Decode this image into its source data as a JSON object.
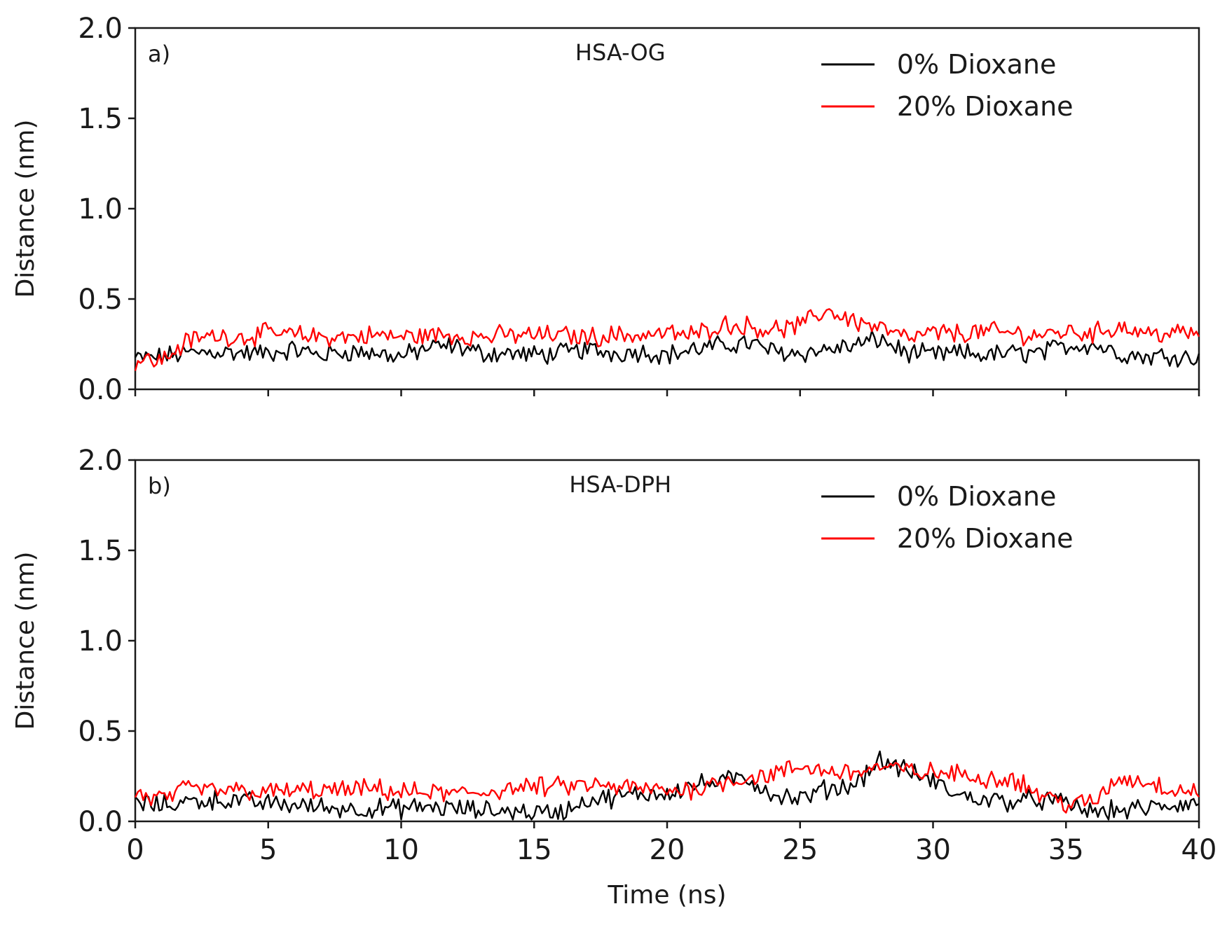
{
  "chart_data": [
    {
      "type": "line",
      "panel_label": "a)",
      "title": "HSA-OG",
      "xlabel": "",
      "ylabel": "Distance (nm)",
      "xlim": [
        0,
        40
      ],
      "ylim": [
        0.0,
        2.0
      ],
      "xticks": [
        0,
        5,
        10,
        15,
        20,
        25,
        30,
        35,
        40
      ],
      "xtick_labels": [
        "",
        "",
        "",
        "",
        "",
        "",
        "",
        "",
        ""
      ],
      "yticks": [
        0.0,
        0.5,
        1.0,
        1.5,
        2.0
      ],
      "ytick_labels": [
        "0.0",
        "0.5",
        "1.0",
        "1.5",
        "2.0"
      ],
      "legend_position": "top-right",
      "series": [
        {
          "name": "0% Dioxane",
          "color": "#000000",
          "x": [
            0,
            1,
            2,
            3,
            4,
            5,
            6,
            7,
            8,
            9,
            10,
            11,
            12,
            13,
            14,
            15,
            16,
            17,
            18,
            19,
            20,
            21,
            22,
            23,
            24,
            25,
            26,
            27,
            28,
            29,
            30,
            31,
            32,
            33,
            34,
            35,
            36,
            37,
            38,
            39,
            40
          ],
          "y": [
            0.17,
            0.18,
            0.2,
            0.21,
            0.2,
            0.2,
            0.22,
            0.19,
            0.21,
            0.2,
            0.18,
            0.23,
            0.24,
            0.2,
            0.2,
            0.19,
            0.2,
            0.22,
            0.2,
            0.21,
            0.19,
            0.22,
            0.24,
            0.26,
            0.21,
            0.2,
            0.22,
            0.24,
            0.28,
            0.2,
            0.19,
            0.2,
            0.19,
            0.2,
            0.2,
            0.24,
            0.25,
            0.2,
            0.18,
            0.19,
            0.17
          ]
        },
        {
          "name": "20% Dioxane",
          "color": "#ff0000",
          "x": [
            0,
            1,
            2,
            3,
            4,
            5,
            6,
            7,
            8,
            9,
            10,
            11,
            12,
            13,
            14,
            15,
            16,
            17,
            18,
            19,
            20,
            21,
            22,
            23,
            24,
            25,
            26,
            27,
            28,
            29,
            30,
            31,
            32,
            33,
            34,
            35,
            36,
            37,
            38,
            39,
            40
          ],
          "y": [
            0.16,
            0.16,
            0.27,
            0.3,
            0.29,
            0.31,
            0.3,
            0.29,
            0.29,
            0.3,
            0.29,
            0.3,
            0.3,
            0.29,
            0.3,
            0.3,
            0.3,
            0.29,
            0.3,
            0.3,
            0.31,
            0.3,
            0.36,
            0.35,
            0.33,
            0.35,
            0.44,
            0.38,
            0.34,
            0.28,
            0.31,
            0.31,
            0.32,
            0.31,
            0.3,
            0.32,
            0.31,
            0.35,
            0.31,
            0.31,
            0.31
          ]
        }
      ]
    },
    {
      "type": "line",
      "panel_label": "b)",
      "title": "HSA-DPH",
      "xlabel": "Time (ns)",
      "ylabel": "Distance (nm)",
      "xlim": [
        0,
        40
      ],
      "ylim": [
        0.0,
        2.0
      ],
      "xticks": [
        0,
        5,
        10,
        15,
        20,
        25,
        30,
        35,
        40
      ],
      "xtick_labels": [
        "0",
        "5",
        "10",
        "15",
        "20",
        "25",
        "30",
        "35",
        "40"
      ],
      "yticks": [
        0.0,
        0.5,
        1.0,
        1.5,
        2.0
      ],
      "ytick_labels": [
        "0.0",
        "0.5",
        "1.0",
        "1.5",
        "2.0"
      ],
      "legend_position": "top-right",
      "series": [
        {
          "name": "0% Dioxane",
          "color": "#000000",
          "x": [
            0,
            1,
            2,
            3,
            4,
            5,
            6,
            7,
            8,
            9,
            10,
            11,
            12,
            13,
            14,
            15,
            16,
            17,
            18,
            19,
            20,
            21,
            22,
            23,
            24,
            25,
            26,
            27,
            28,
            29,
            30,
            31,
            32,
            33,
            34,
            35,
            36,
            37,
            38,
            39,
            40
          ],
          "y": [
            0.1,
            0.09,
            0.11,
            0.12,
            0.11,
            0.1,
            0.09,
            0.08,
            0.07,
            0.07,
            0.07,
            0.08,
            0.07,
            0.06,
            0.06,
            0.05,
            0.05,
            0.12,
            0.13,
            0.15,
            0.16,
            0.2,
            0.22,
            0.24,
            0.15,
            0.12,
            0.18,
            0.2,
            0.34,
            0.28,
            0.22,
            0.14,
            0.12,
            0.11,
            0.12,
            0.1,
            0.05,
            0.06,
            0.07,
            0.09,
            0.1
          ]
        },
        {
          "name": "20% Dioxane",
          "color": "#ff0000",
          "x": [
            0,
            1,
            2,
            3,
            4,
            5,
            6,
            7,
            8,
            9,
            10,
            11,
            12,
            13,
            14,
            15,
            16,
            17,
            18,
            19,
            20,
            21,
            22,
            23,
            24,
            25,
            26,
            27,
            28,
            29,
            30,
            31,
            32,
            33,
            34,
            35,
            36,
            37,
            38,
            39,
            40
          ],
          "y": [
            0.15,
            0.12,
            0.18,
            0.17,
            0.17,
            0.16,
            0.17,
            0.17,
            0.17,
            0.18,
            0.16,
            0.16,
            0.15,
            0.16,
            0.18,
            0.19,
            0.19,
            0.2,
            0.19,
            0.18,
            0.17,
            0.18,
            0.22,
            0.24,
            0.26,
            0.3,
            0.28,
            0.27,
            0.3,
            0.28,
            0.27,
            0.26,
            0.24,
            0.24,
            0.15,
            0.1,
            0.1,
            0.24,
            0.22,
            0.18,
            0.17
          ]
        }
      ]
    }
  ]
}
